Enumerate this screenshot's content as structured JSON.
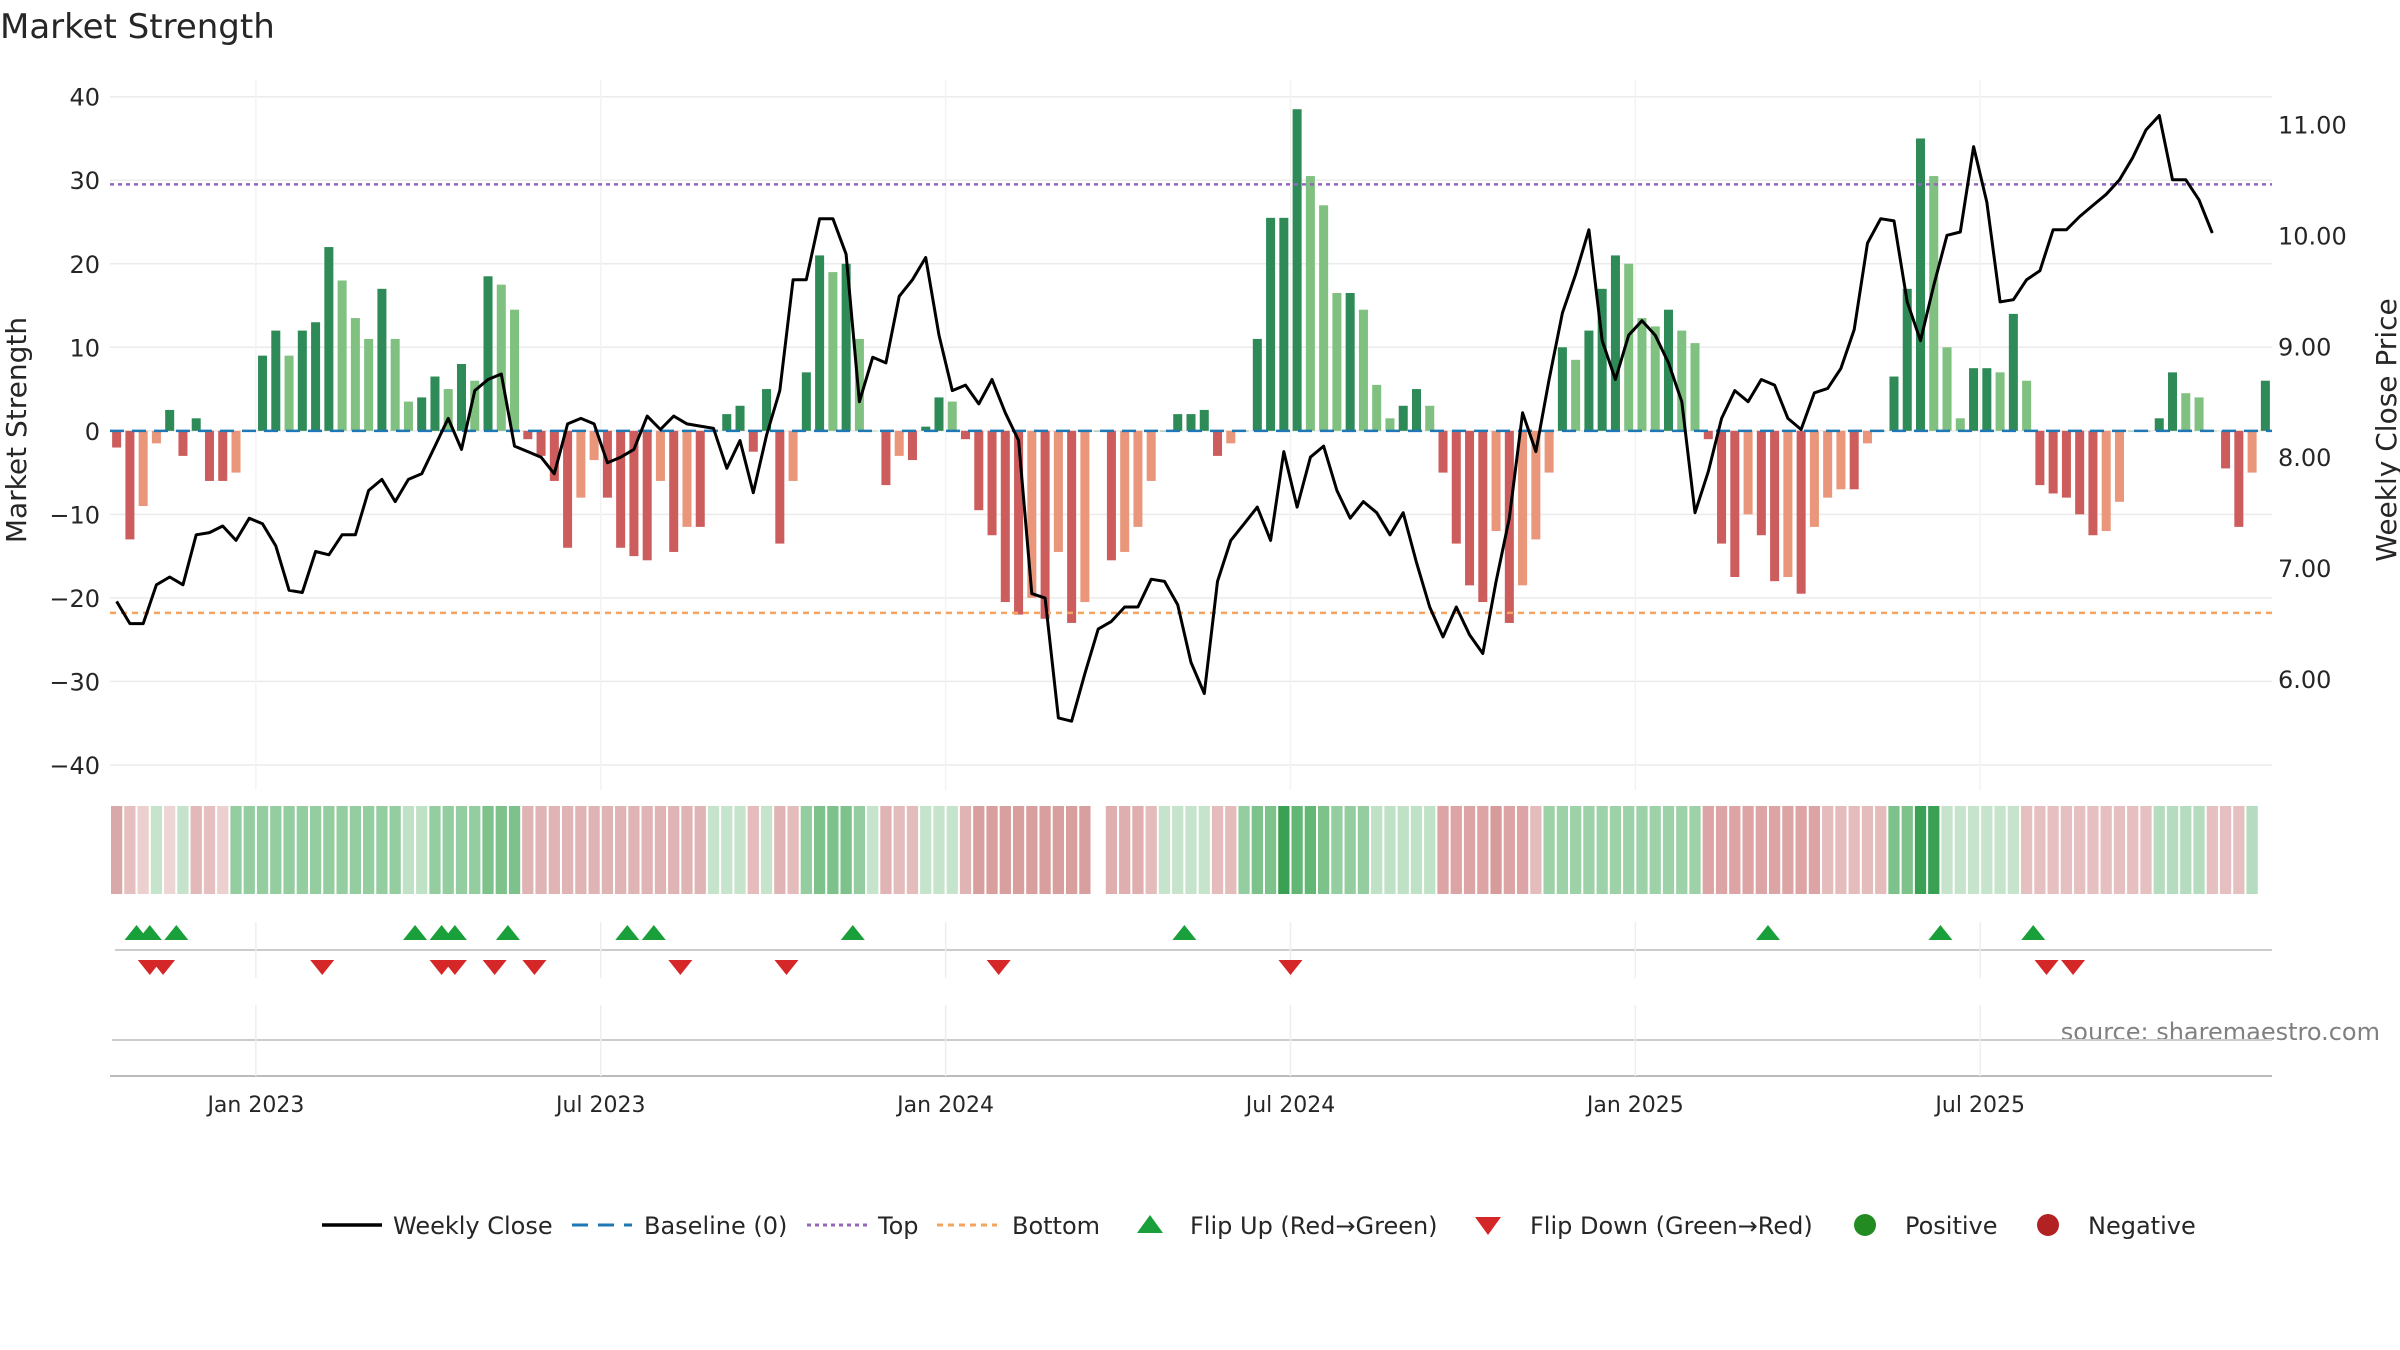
{
  "chart_data": {
    "type": "bar",
    "title": "Market Strength",
    "ylabel": "Market Strength",
    "y2label": "Weekly Close Price",
    "ylim": [
      -43,
      42
    ],
    "y2lim": [
      5.0,
      11.4
    ],
    "yticks": [
      40,
      30,
      20,
      10,
      0,
      -10,
      -20,
      -30,
      -40
    ],
    "y2ticks": [
      "11.00",
      "10.00",
      "9.00",
      "8.00",
      "7.00",
      "6.00"
    ],
    "y2tick_values": [
      11.0,
      10.0,
      9.0,
      8.0,
      7.0,
      6.0
    ],
    "top_level": 29.5,
    "bottom_level": -21.8,
    "x_axis": {
      "start": "2022-10-17",
      "end": "2025-10-20",
      "tick_labels": [
        "Jan 2023",
        "Jul 2023",
        "Jan 2024",
        "Jul 2024",
        "Jan 2025",
        "Jul 2025"
      ],
      "tick_weeks": [
        11,
        37,
        63,
        89,
        115,
        141
      ]
    },
    "strength": [
      -2,
      -13,
      -9,
      -1.5,
      2.5,
      -3,
      1.5,
      -6,
      -6,
      -5,
      0,
      9,
      12,
      9,
      12,
      13,
      22,
      18,
      13.5,
      11,
      17,
      11,
      3.5,
      4,
      6.5,
      5,
      8,
      6,
      18.5,
      17.5,
      14.5,
      -1,
      -3,
      -6,
      -14,
      -8,
      -3.5,
      -8,
      -14,
      -15,
      -15.5,
      -6,
      -14.5,
      -11.5,
      -11.5,
      0,
      2,
      3,
      -2.5,
      5,
      -13.5,
      -6,
      7,
      21,
      19,
      20,
      11,
      0,
      -6.5,
      -3,
      -3.5,
      0.5,
      4,
      3.5,
      -1,
      -9.5,
      -12.5,
      -20.5,
      -22,
      -20,
      -22.5,
      -14.5,
      -23,
      -20.5,
      0,
      -15.5,
      -14.5,
      -11.5,
      -6,
      0,
      2,
      2,
      2.5,
      -3,
      -1.5,
      0,
      11,
      25.5,
      25.5,
      38.5,
      30.5,
      27,
      16.5,
      16.5,
      14.5,
      5.5,
      1.5,
      3,
      5,
      3,
      -5,
      -13.5,
      -18.5,
      -20.5,
      -12,
      -23,
      -18.5,
      -13,
      -5,
      10,
      8.5,
      12,
      17,
      21,
      20,
      13.5,
      12.5,
      14.5,
      12,
      10.5,
      -1,
      -13.5,
      -17.5,
      -10,
      -12.5,
      -18,
      -17.5,
      -19.5,
      -11.5,
      -8,
      -7,
      -7,
      -1.5,
      0,
      6.5,
      17,
      35,
      30.5,
      10,
      1.5,
      7.5,
      7.5,
      7,
      14,
      6,
      -6.5,
      -7.5,
      -8,
      -10,
      -12.5,
      -12,
      -8.5,
      0,
      0,
      1.5,
      7,
      4.5,
      4,
      0,
      -4.5,
      -11.5,
      -5,
      6
    ],
    "close": [
      6.7,
      6.5,
      6.5,
      6.85,
      6.92,
      6.85,
      7.3,
      7.32,
      7.38,
      7.25,
      7.45,
      7.4,
      7.2,
      6.8,
      6.78,
      7.15,
      7.12,
      7.3,
      7.3,
      7.7,
      7.8,
      7.6,
      7.8,
      7.85,
      8.1,
      8.35,
      8.07,
      8.6,
      8.7,
      8.75,
      8.1,
      8.05,
      8.0,
      7.85,
      8.3,
      8.35,
      8.3,
      7.95,
      8.0,
      8.07,
      8.37,
      8.25,
      8.37,
      8.3,
      8.28,
      8.26,
      7.9,
      8.15,
      7.68,
      8.2,
      8.6,
      9.6,
      9.6,
      10.15,
      10.15,
      9.83,
      8.5,
      8.9,
      8.85,
      9.45,
      9.6,
      9.8,
      9.1,
      8.6,
      8.65,
      8.48,
      8.7,
      8.4,
      8.15,
      6.77,
      6.73,
      5.65,
      5.62,
      6.05,
      6.45,
      6.52,
      6.65,
      6.65,
      6.9,
      6.88,
      6.67,
      6.15,
      5.87,
      6.88,
      7.25,
      7.4,
      7.55,
      7.25,
      8.05,
      7.55,
      8.0,
      8.1,
      7.7,
      7.45,
      7.6,
      7.5,
      7.3,
      7.5,
      7.05,
      6.65,
      6.38,
      6.65,
      6.4,
      6.23,
      6.88,
      7.45,
      8.4,
      8.05,
      8.7,
      9.3,
      9.65,
      10.05,
      9.05,
      8.7,
      9.1,
      9.23,
      9.1,
      8.85,
      8.5,
      7.5,
      7.87,
      8.35,
      8.6,
      8.5,
      8.7,
      8.65,
      8.35,
      8.25,
      8.58,
      8.62,
      8.8,
      9.15,
      9.93,
      10.15,
      10.13,
      9.4,
      9.05,
      9.55,
      10.0,
      10.03,
      10.8,
      10.3,
      9.4,
      9.42,
      9.6,
      9.68,
      10.05,
      10.05,
      10.17,
      10.27,
      10.37,
      10.5,
      10.7,
      10.95,
      11.08,
      10.5,
      10.5,
      10.32,
      10.02
    ],
    "flip_up_weeks": [
      2,
      3,
      5,
      23,
      25,
      26,
      30,
      39,
      41,
      56,
      81,
      125,
      138,
      145
    ],
    "flip_down_weeks": [
      2,
      3,
      15,
      24,
      25,
      28,
      31,
      42,
      50,
      66,
      88,
      145,
      147
    ],
    "stripe_colors": [
      "#d9a9a9",
      "#e6c0c0",
      "#ecd0d0",
      "#c6e4cb",
      "#eed5d5",
      "#c4e3ca",
      "#e2b8b8",
      "#e6c0c0",
      "#ecd0d0",
      "#94cd9f",
      "#94cd9f",
      "#94cd9f",
      "#94cd9f",
      "#94cd9f",
      "#94cd9f",
      "#94cd9f",
      "#94cd9f",
      "#94cd9f",
      "#94cd9f",
      "#94cd9f",
      "#94cd9f",
      "#94cd9f",
      "#bfe1c6",
      "#bfe1c6",
      "#94cd9f",
      "#94cd9f",
      "#94cd9f",
      "#94cd9f",
      "#7cc28a",
      "#7cc28a",
      "#7cc28a",
      "#e0b4b4",
      "#e0b4b4",
      "#e0b4b4",
      "#e0b4b4",
      "#e0b4b4",
      "#e0b4b4",
      "#e0b4b4",
      "#e0b4b4",
      "#e0b4b4",
      "#e0b4b4",
      "#e0b4b4",
      "#e0b4b4",
      "#e0b4b4",
      "#e0b4b4",
      "#c6e4cb",
      "#c6e4cb",
      "#c6e4cb",
      "#e4bcbc",
      "#c6e4cb",
      "#e0b4b4",
      "#e4bcbc",
      "#94cd9f",
      "#7cc28a",
      "#7cc28a",
      "#7cc28a",
      "#94cd9f",
      "#c6e4cb",
      "#e0b4b4",
      "#e4bcbc",
      "#e4bcbc",
      "#c6e4cb",
      "#c6e4cb",
      "#c6e4cb",
      "#e0b4b4",
      "#d99f9f",
      "#d99f9f",
      "#d99f9f",
      "#d99f9f",
      "#d99f9f",
      "#d99f9f",
      "#d99f9f",
      "#d99f9f",
      "#d99f9f",
      "#ffffff",
      "#dfaeae",
      "#dfaeae",
      "#dfaeae",
      "#e4bcbc",
      "#c6e4cb",
      "#c6e4cb",
      "#c6e4cb",
      "#c6e4cb",
      "#e4bcbc",
      "#e4bcbc",
      "#94cd9f",
      "#7cc28a",
      "#7cc28a",
      "#3aa054",
      "#62b775",
      "#62b775",
      "#7cc28a",
      "#94cd9f",
      "#94cd9f",
      "#94cd9f",
      "#bfe1c6",
      "#bfe1c6",
      "#bfe1c6",
      "#bfe1c6",
      "#bfe1c6",
      "#dca4a4",
      "#dca4a4",
      "#dca4a4",
      "#dca4a4",
      "#d69c9c",
      "#dca4a4",
      "#dca4a4",
      "#e4bcbc",
      "#9dd1a8",
      "#9dd1a8",
      "#9dd1a8",
      "#9dd1a8",
      "#9dd1a8",
      "#9dd1a8",
      "#9dd1a8",
      "#9dd1a8",
      "#9dd1a8",
      "#9dd1a8",
      "#9dd1a8",
      "#9dd1a8",
      "#dca4a4",
      "#dca4a4",
      "#dca4a4",
      "#dca4a4",
      "#dca4a4",
      "#dca4a4",
      "#dca4a4",
      "#dca4a4",
      "#dca4a4",
      "#e4bcbc",
      "#e4bcbc",
      "#e4bcbc",
      "#e4bcbc",
      "#e4bcbc",
      "#7cc28a",
      "#7cc28a",
      "#3aa054",
      "#3aa054",
      "#c6e4cb",
      "#c6e4cb",
      "#c6e4cb",
      "#c6e4cb",
      "#c6e4cb",
      "#c6e4cb",
      "#e6c0c0",
      "#e6c0c0",
      "#e6c0c0",
      "#e6c0c0",
      "#e6c0c0",
      "#e6c0c0",
      "#e6c0c0",
      "#e6c0c0",
      "#e6c0c0",
      "#e6c0c0",
      "#b5dcbe",
      "#b5dcbe",
      "#b5dcbe",
      "#b5dcbe",
      "#e6c0c0",
      "#e6c0c0",
      "#e6c0c0",
      "#b5dcbe"
    ],
    "colors": {
      "pos_strong": "#2e8b57",
      "pos_weak": "#80c080",
      "neg_strong": "#cd5c5c",
      "neg_weak": "#e9967a",
      "close_line": "#000000",
      "baseline": "#1f77b4",
      "top": "#9467bd",
      "bottom": "#f4a460",
      "flip_up": "#1aa03a",
      "flip_down": "#d62728",
      "positive": "#228b22",
      "negative": "#b22222",
      "grid": "#ebebeb"
    },
    "legend": [
      {
        "key": "close",
        "label": "Weekly Close"
      },
      {
        "key": "baseline",
        "label": "Baseline (0)"
      },
      {
        "key": "top",
        "label": "Top"
      },
      {
        "key": "bottom",
        "label": "Bottom"
      },
      {
        "key": "flipup",
        "label": "Flip Up (Red→Green)"
      },
      {
        "key": "flipdown",
        "label": "Flip Down (Green→Red)"
      },
      {
        "key": "positive",
        "label": "Positive"
      },
      {
        "key": "negative",
        "label": "Negative"
      }
    ],
    "legend_position": "bottom-center",
    "source": "source: sharemaestro.com"
  }
}
